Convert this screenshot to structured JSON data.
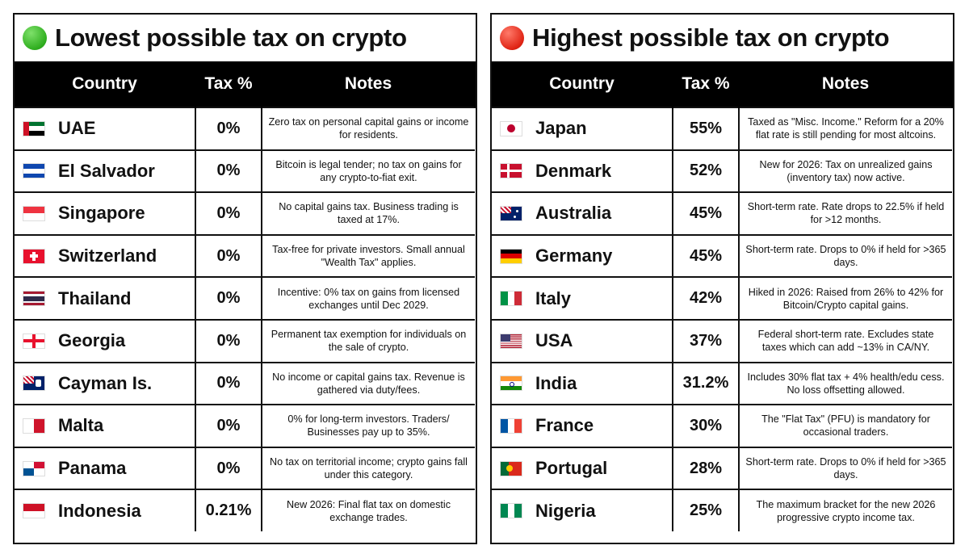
{
  "panels": [
    {
      "title": "Lowest possible tax on crypto",
      "dot_icon": "green-circle-icon",
      "headers": {
        "country": "Country",
        "tax": "Tax %",
        "notes": "Notes"
      },
      "rows": [
        {
          "country": "UAE",
          "tax": "0%",
          "notes": "Zero tax on personal capital gains or income for residents.",
          "flag": "uae-flag-icon"
        },
        {
          "country": "El Salvador",
          "tax": "0%",
          "notes": "Bitcoin is legal tender; no tax on gains for any crypto-to-fiat exit.",
          "flag": "el-salvador-flag-icon"
        },
        {
          "country": "Singapore",
          "tax": "0%",
          "notes": "No capital gains tax. Business trading is taxed at 17%.",
          "flag": "singapore-flag-icon"
        },
        {
          "country": "Switzerland",
          "tax": "0%",
          "notes": "Tax-free for private investors. Small annual \"Wealth Tax\" applies.",
          "flag": "switzerland-flag-icon"
        },
        {
          "country": "Thailand",
          "tax": "0%",
          "notes": "Incentive: 0% tax on gains from licensed exchanges until Dec 2029.",
          "flag": "thailand-flag-icon"
        },
        {
          "country": "Georgia",
          "tax": "0%",
          "notes": "Permanent tax exemption for individuals on the sale of crypto.",
          "flag": "georgia-flag-icon"
        },
        {
          "country": "Cayman Is.",
          "tax": "0%",
          "notes": "No income or capital gains tax. Revenue is gathered via duty/fees.",
          "flag": "cayman-islands-flag-icon"
        },
        {
          "country": "Malta",
          "tax": "0%",
          "notes": "0% for long-term investors. Traders/ Businesses pay up to 35%.",
          "flag": "malta-flag-icon"
        },
        {
          "country": "Panama",
          "tax": "0%",
          "notes": "No tax on territorial income; crypto gains fall under this category.",
          "flag": "panama-flag-icon"
        },
        {
          "country": "Indonesia",
          "tax": "0.21%",
          "notes": "New 2026: Final flat tax on domestic exchange trades.",
          "flag": "indonesia-flag-icon"
        }
      ]
    },
    {
      "title": "Highest possible tax on crypto",
      "dot_icon": "red-circle-icon",
      "headers": {
        "country": "Country",
        "tax": "Tax %",
        "notes": "Notes"
      },
      "rows": [
        {
          "country": "Japan",
          "tax": "55%",
          "notes": "Taxed as \"Misc. Income.\" Reform for a 20% flat rate is still pending for most altcoins.",
          "flag": "japan-flag-icon"
        },
        {
          "country": "Denmark",
          "tax": "52%",
          "notes": "New for 2026: Tax on unrealized gains (inventory tax) now active.",
          "flag": "denmark-flag-icon"
        },
        {
          "country": "Australia",
          "tax": "45%",
          "notes": "Short-term rate. Rate drops to 22.5% if held for >12 months.",
          "flag": "australia-flag-icon"
        },
        {
          "country": "Germany",
          "tax": "45%",
          "notes": "Short-term rate. Drops to 0% if held for >365 days.",
          "flag": "germany-flag-icon"
        },
        {
          "country": "Italy",
          "tax": "42%",
          "notes": "Hiked in 2026: Raised from 26% to 42% for Bitcoin/Crypto capital gains.",
          "flag": "italy-flag-icon"
        },
        {
          "country": "USA",
          "tax": "37%",
          "notes": "Federal short-term rate. Excludes state taxes which can add ~13% in CA/NY.",
          "flag": "usa-flag-icon"
        },
        {
          "country": "India",
          "tax": "31.2%",
          "notes": "Includes 30% flat tax + 4% health/edu cess. No loss offsetting allowed.",
          "flag": "india-flag-icon"
        },
        {
          "country": "France",
          "tax": "30%",
          "notes": "The \"Flat Tax\" (PFU) is mandatory for occasional traders.",
          "flag": "france-flag-icon"
        },
        {
          "country": "Portugal",
          "tax": "28%",
          "notes": "Short-term rate. Drops to 0% if held for >365 days.",
          "flag": "portugal-flag-icon"
        },
        {
          "country": "Nigeria",
          "tax": "25%",
          "notes": "The maximum bracket for the new 2026 progressive crypto income tax.",
          "flag": "nigeria-flag-icon"
        }
      ]
    }
  ]
}
